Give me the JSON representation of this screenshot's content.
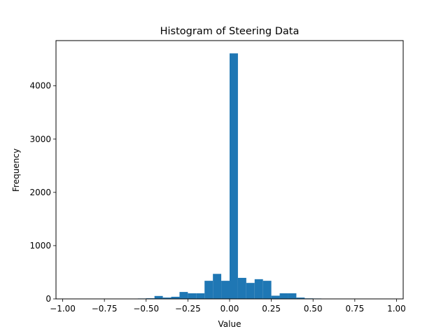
{
  "chart_data": {
    "type": "bar",
    "title": "Histogram of Steering Data",
    "xlabel": "Value",
    "ylabel": "Frequency",
    "xlim": [
      -1.04,
      1.04
    ],
    "ylim": [
      0,
      4850
    ],
    "xticks": [
      -1.0,
      -0.75,
      -0.5,
      -0.25,
      0.0,
      0.25,
      0.5,
      0.75,
      1.0
    ],
    "xtick_labels": [
      "−1.00",
      "−0.75",
      "−0.50",
      "−0.25",
      "0.00",
      "0.25",
      "0.50",
      "0.75",
      "1.00"
    ],
    "yticks": [
      0,
      1000,
      2000,
      3000,
      4000
    ],
    "ytick_labels": [
      "0",
      "1000",
      "2000",
      "3000",
      "4000"
    ],
    "bin_width": 0.05,
    "bins": [
      {
        "x0": -0.55,
        "x1": -0.5,
        "count": 8
      },
      {
        "x0": -0.5,
        "x1": -0.45,
        "count": 12
      },
      {
        "x0": -0.45,
        "x1": -0.4,
        "count": 55
      },
      {
        "x0": -0.4,
        "x1": -0.35,
        "count": 25
      },
      {
        "x0": -0.35,
        "x1": -0.3,
        "count": 40
      },
      {
        "x0": -0.3,
        "x1": -0.25,
        "count": 130
      },
      {
        "x0": -0.25,
        "x1": -0.2,
        "count": 105
      },
      {
        "x0": -0.2,
        "x1": -0.15,
        "count": 105
      },
      {
        "x0": -0.15,
        "x1": -0.1,
        "count": 340
      },
      {
        "x0": -0.1,
        "x1": -0.05,
        "count": 470
      },
      {
        "x0": -0.05,
        "x1": 0.0,
        "count": 340
      },
      {
        "x0": 0.0,
        "x1": 0.05,
        "count": 4610
      },
      {
        "x0": 0.05,
        "x1": 0.1,
        "count": 395
      },
      {
        "x0": 0.1,
        "x1": 0.15,
        "count": 300
      },
      {
        "x0": 0.15,
        "x1": 0.2,
        "count": 370
      },
      {
        "x0": 0.2,
        "x1": 0.25,
        "count": 340
      },
      {
        "x0": 0.25,
        "x1": 0.3,
        "count": 60
      },
      {
        "x0": 0.3,
        "x1": 0.35,
        "count": 105
      },
      {
        "x0": 0.35,
        "x1": 0.4,
        "count": 105
      },
      {
        "x0": 0.4,
        "x1": 0.45,
        "count": 25
      },
      {
        "x0": 0.45,
        "x1": 0.5,
        "count": 10
      },
      {
        "x0": 0.5,
        "x1": 0.55,
        "count": 8
      }
    ],
    "bar_color": "#1f77b4",
    "grid": false,
    "legend": false
  }
}
